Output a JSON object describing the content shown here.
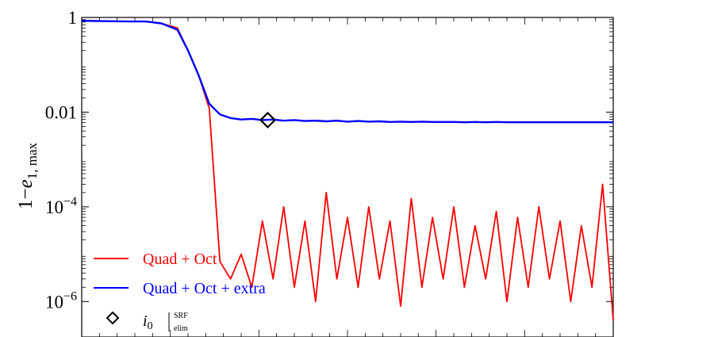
{
  "chart_data": {
    "type": "line",
    "title": "",
    "xlabel": "",
    "ylabel": {
      "base": "1−",
      "var": "e",
      "sub": "1, max"
    },
    "yscale": "log",
    "ylim": [
      2e-07,
      1.0
    ],
    "xlim": [
      0,
      1
    ],
    "grid": false,
    "legend_position": "bottom-left",
    "y_ticks": [
      {
        "value": 1,
        "label": "1"
      },
      {
        "value": 0.01,
        "label": "0.01"
      },
      {
        "value": 0.0001,
        "label": "10",
        "exp": "−4"
      },
      {
        "value": 1e-06,
        "label": "10",
        "exp": "−6"
      }
    ],
    "series": [
      {
        "name": "Quad + Oct",
        "color": "#ff0000",
        "x": [
          0.0,
          0.03,
          0.06,
          0.09,
          0.12,
          0.15,
          0.18,
          0.2,
          0.22,
          0.24,
          0.26,
          0.28,
          0.3,
          0.32,
          0.34,
          0.36,
          0.38,
          0.4,
          0.42,
          0.44,
          0.46,
          0.48,
          0.5,
          0.52,
          0.54,
          0.56,
          0.58,
          0.6,
          0.62,
          0.64,
          0.66,
          0.68,
          0.7,
          0.72,
          0.74,
          0.76,
          0.78,
          0.8,
          0.82,
          0.84,
          0.86,
          0.88,
          0.9,
          0.92,
          0.94,
          0.96,
          0.98,
          1.0
        ],
        "y": [
          0.85,
          0.84,
          0.83,
          0.82,
          0.82,
          0.75,
          0.6,
          0.2,
          0.06,
          0.012,
          7e-06,
          3e-06,
          1e-05,
          2e-06,
          5e-05,
          3e-06,
          0.0001,
          2e-06,
          5e-05,
          1e-06,
          0.0002,
          3e-06,
          6e-05,
          2e-06,
          0.0001,
          3e-06,
          5e-05,
          8e-07,
          0.00015,
          2e-06,
          6e-05,
          3e-06,
          0.0001,
          2e-06,
          4e-05,
          3e-06,
          8e-05,
          1e-06,
          6e-05,
          2e-06,
          0.0001,
          3e-06,
          5e-05,
          1e-06,
          4e-05,
          2e-06,
          0.0003,
          4e-07
        ]
      },
      {
        "name": "Quad + Oct + extra",
        "color": "#0000ff",
        "x": [
          0.0,
          0.03,
          0.06,
          0.09,
          0.12,
          0.15,
          0.18,
          0.2,
          0.22,
          0.24,
          0.26,
          0.28,
          0.3,
          0.32,
          0.34,
          0.36,
          0.38,
          0.4,
          0.42,
          0.44,
          0.46,
          0.48,
          0.5,
          0.52,
          0.54,
          0.56,
          0.58,
          0.6,
          0.62,
          0.64,
          0.66,
          0.68,
          0.7,
          0.72,
          0.74,
          0.76,
          0.78,
          0.8,
          0.82,
          0.84,
          0.86,
          0.88,
          0.9,
          0.92,
          0.94,
          0.96,
          0.98,
          1.0
        ],
        "y": [
          0.85,
          0.84,
          0.83,
          0.82,
          0.82,
          0.75,
          0.55,
          0.2,
          0.06,
          0.015,
          0.009,
          0.0075,
          0.007,
          0.0072,
          0.0068,
          0.007,
          0.0066,
          0.0068,
          0.0065,
          0.0066,
          0.0064,
          0.0066,
          0.0063,
          0.0065,
          0.0063,
          0.0064,
          0.0062,
          0.0063,
          0.0062,
          0.0063,
          0.0062,
          0.0062,
          0.0062,
          0.0061,
          0.0062,
          0.0061,
          0.0062,
          0.0061,
          0.0061,
          0.0061,
          0.0061,
          0.0061,
          0.0061,
          0.0061,
          0.0061,
          0.0061,
          0.0061,
          0.0061
        ]
      }
    ],
    "marker": {
      "x": 0.35,
      "y": 0.0068,
      "shape": "diamond",
      "label": "i",
      "label_sub": "0",
      "label_sup": "SRF",
      "label_sub2": "elim"
    }
  }
}
